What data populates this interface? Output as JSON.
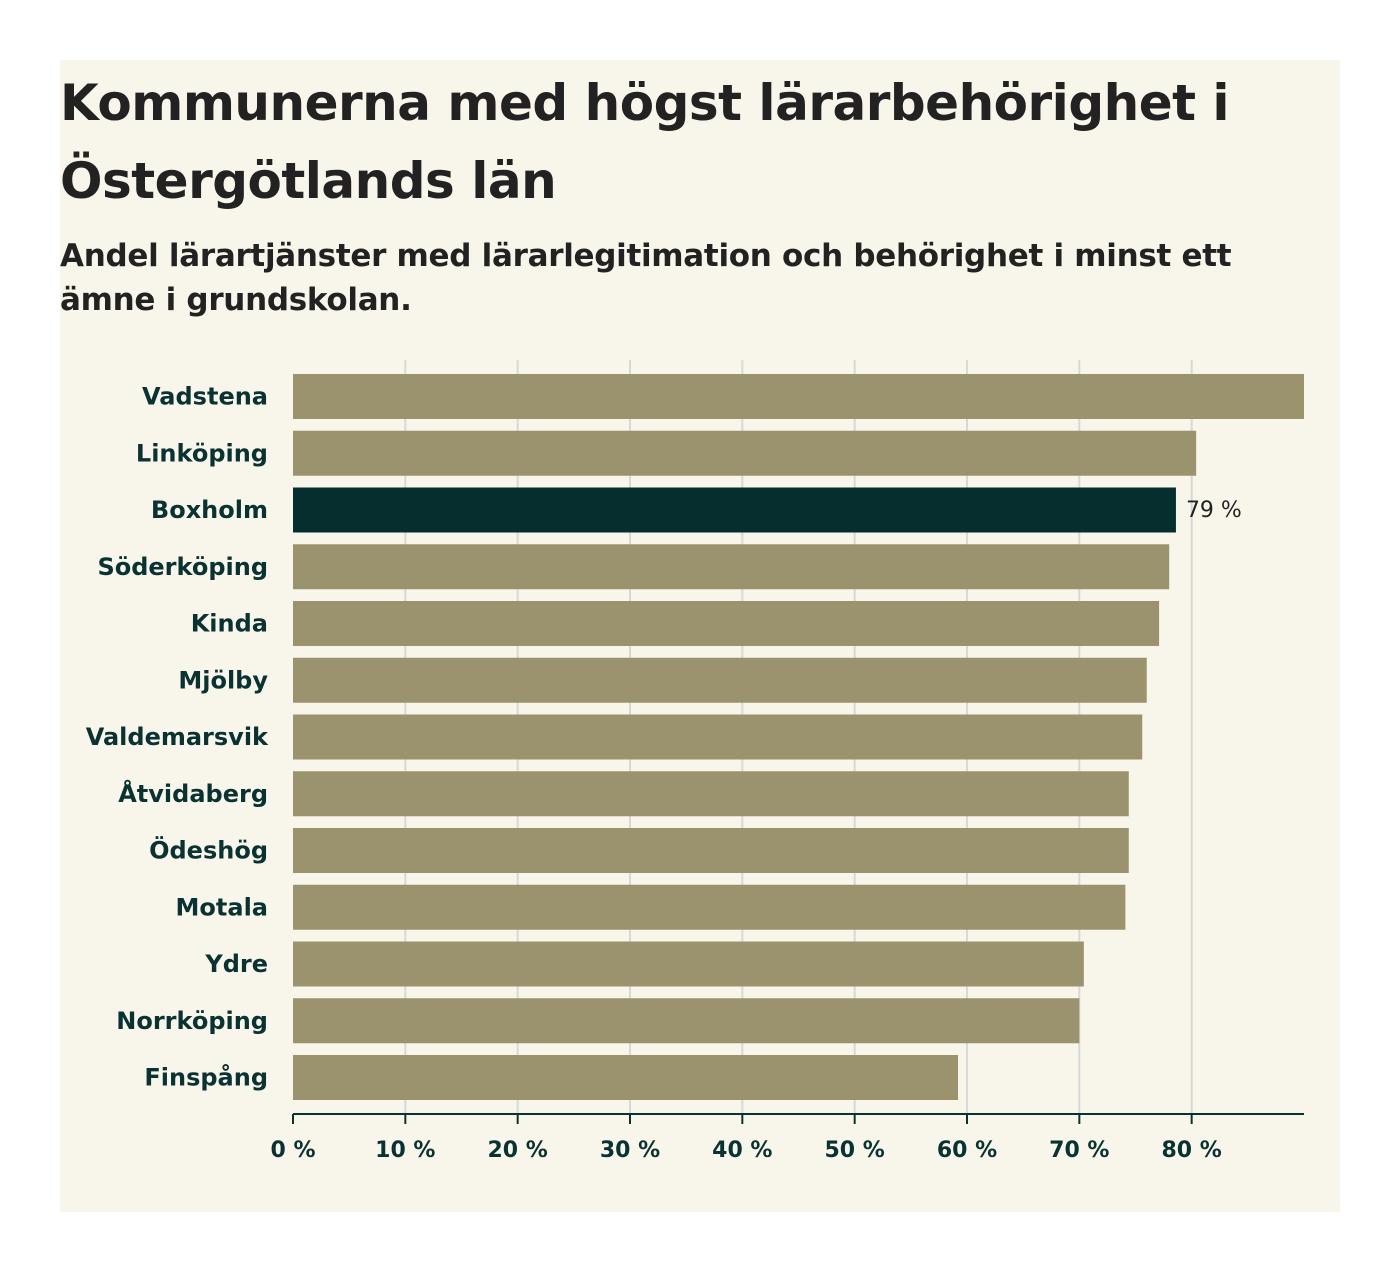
{
  "header": {
    "title": "Kommunerna med högst lärarbehörighet i Östergötlands län",
    "subtitle": "Andel lärartjänster med lärarlegitimation och behörighet i minst ett ämne i grundskolan."
  },
  "colors": {
    "bar": "#9a936d",
    "highlight": "#062e2e",
    "grid": "#d8d8d6",
    "axis": "#0b3232"
  },
  "chart_data": {
    "type": "bar",
    "orientation": "horizontal",
    "categories": [
      "Vadstena",
      "Linköping",
      "Boxholm",
      "Söderköping",
      "Kinda",
      "Mjölby",
      "Valdemarsvik",
      "Åtvidaberg",
      "Ödeshög",
      "Motala",
      "Ydre",
      "Norrköping",
      "Finspång"
    ],
    "values": [
      90,
      80.4,
      78.6,
      78,
      77.1,
      76,
      75.6,
      74.4,
      74.4,
      74.1,
      70.4,
      70,
      59.2
    ],
    "highlight": "Boxholm",
    "data_labels": [
      {
        "category": "Boxholm",
        "text": "79 %"
      }
    ],
    "xticks": [
      "0 %",
      "10 %",
      "20 %",
      "30 %",
      "40 %",
      "50 %",
      "60 %",
      "70 %",
      "80 %"
    ],
    "xlim": [
      0,
      90
    ],
    "grid": true,
    "title": "Kommunerna med högst lärarbehörighet i Östergötlands län",
    "subtitle": "Andel lärartjänster med lärarlegitimation och behörighet i minst ett ämne i grundskolan.",
    "xlabel": "",
    "ylabel": ""
  }
}
